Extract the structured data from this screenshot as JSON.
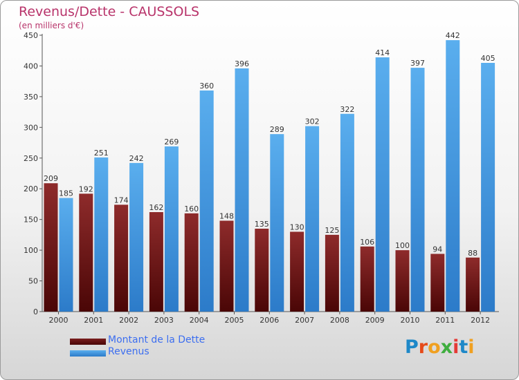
{
  "chart_data": {
    "type": "bar",
    "title": "Revenus/Dette - CAUSSOLS",
    "subtitle": "(en milliers d'€)",
    "xlabel": "",
    "ylabel": "",
    "categories": [
      "2000",
      "2001",
      "2002",
      "2003",
      "2004",
      "2005",
      "2006",
      "2007",
      "2008",
      "2009",
      "2010",
      "2011",
      "2012"
    ],
    "series": [
      {
        "name": "Montant de la Dette",
        "color": "#7a1d1d",
        "values": [
          209,
          192,
          174,
          162,
          160,
          148,
          135,
          130,
          125,
          106,
          100,
          94,
          88
        ]
      },
      {
        "name": "Revenus",
        "color": "#3a8fe0",
        "values": [
          185,
          251,
          242,
          269,
          360,
          396,
          289,
          302,
          322,
          414,
          397,
          442,
          405
        ]
      }
    ],
    "ylim": [
      0,
      450
    ],
    "yticks": [
      0,
      50,
      100,
      150,
      200,
      250,
      300,
      350,
      400,
      450
    ],
    "grid": false,
    "legend": "bottom-left"
  },
  "branding": {
    "logo_text": "Proxiti",
    "letter_colors": [
      "#1e88c8",
      "#e64a19",
      "#f0a020",
      "#3fae3f",
      "#e53935",
      "#1e88c8",
      "#f0a020"
    ]
  }
}
